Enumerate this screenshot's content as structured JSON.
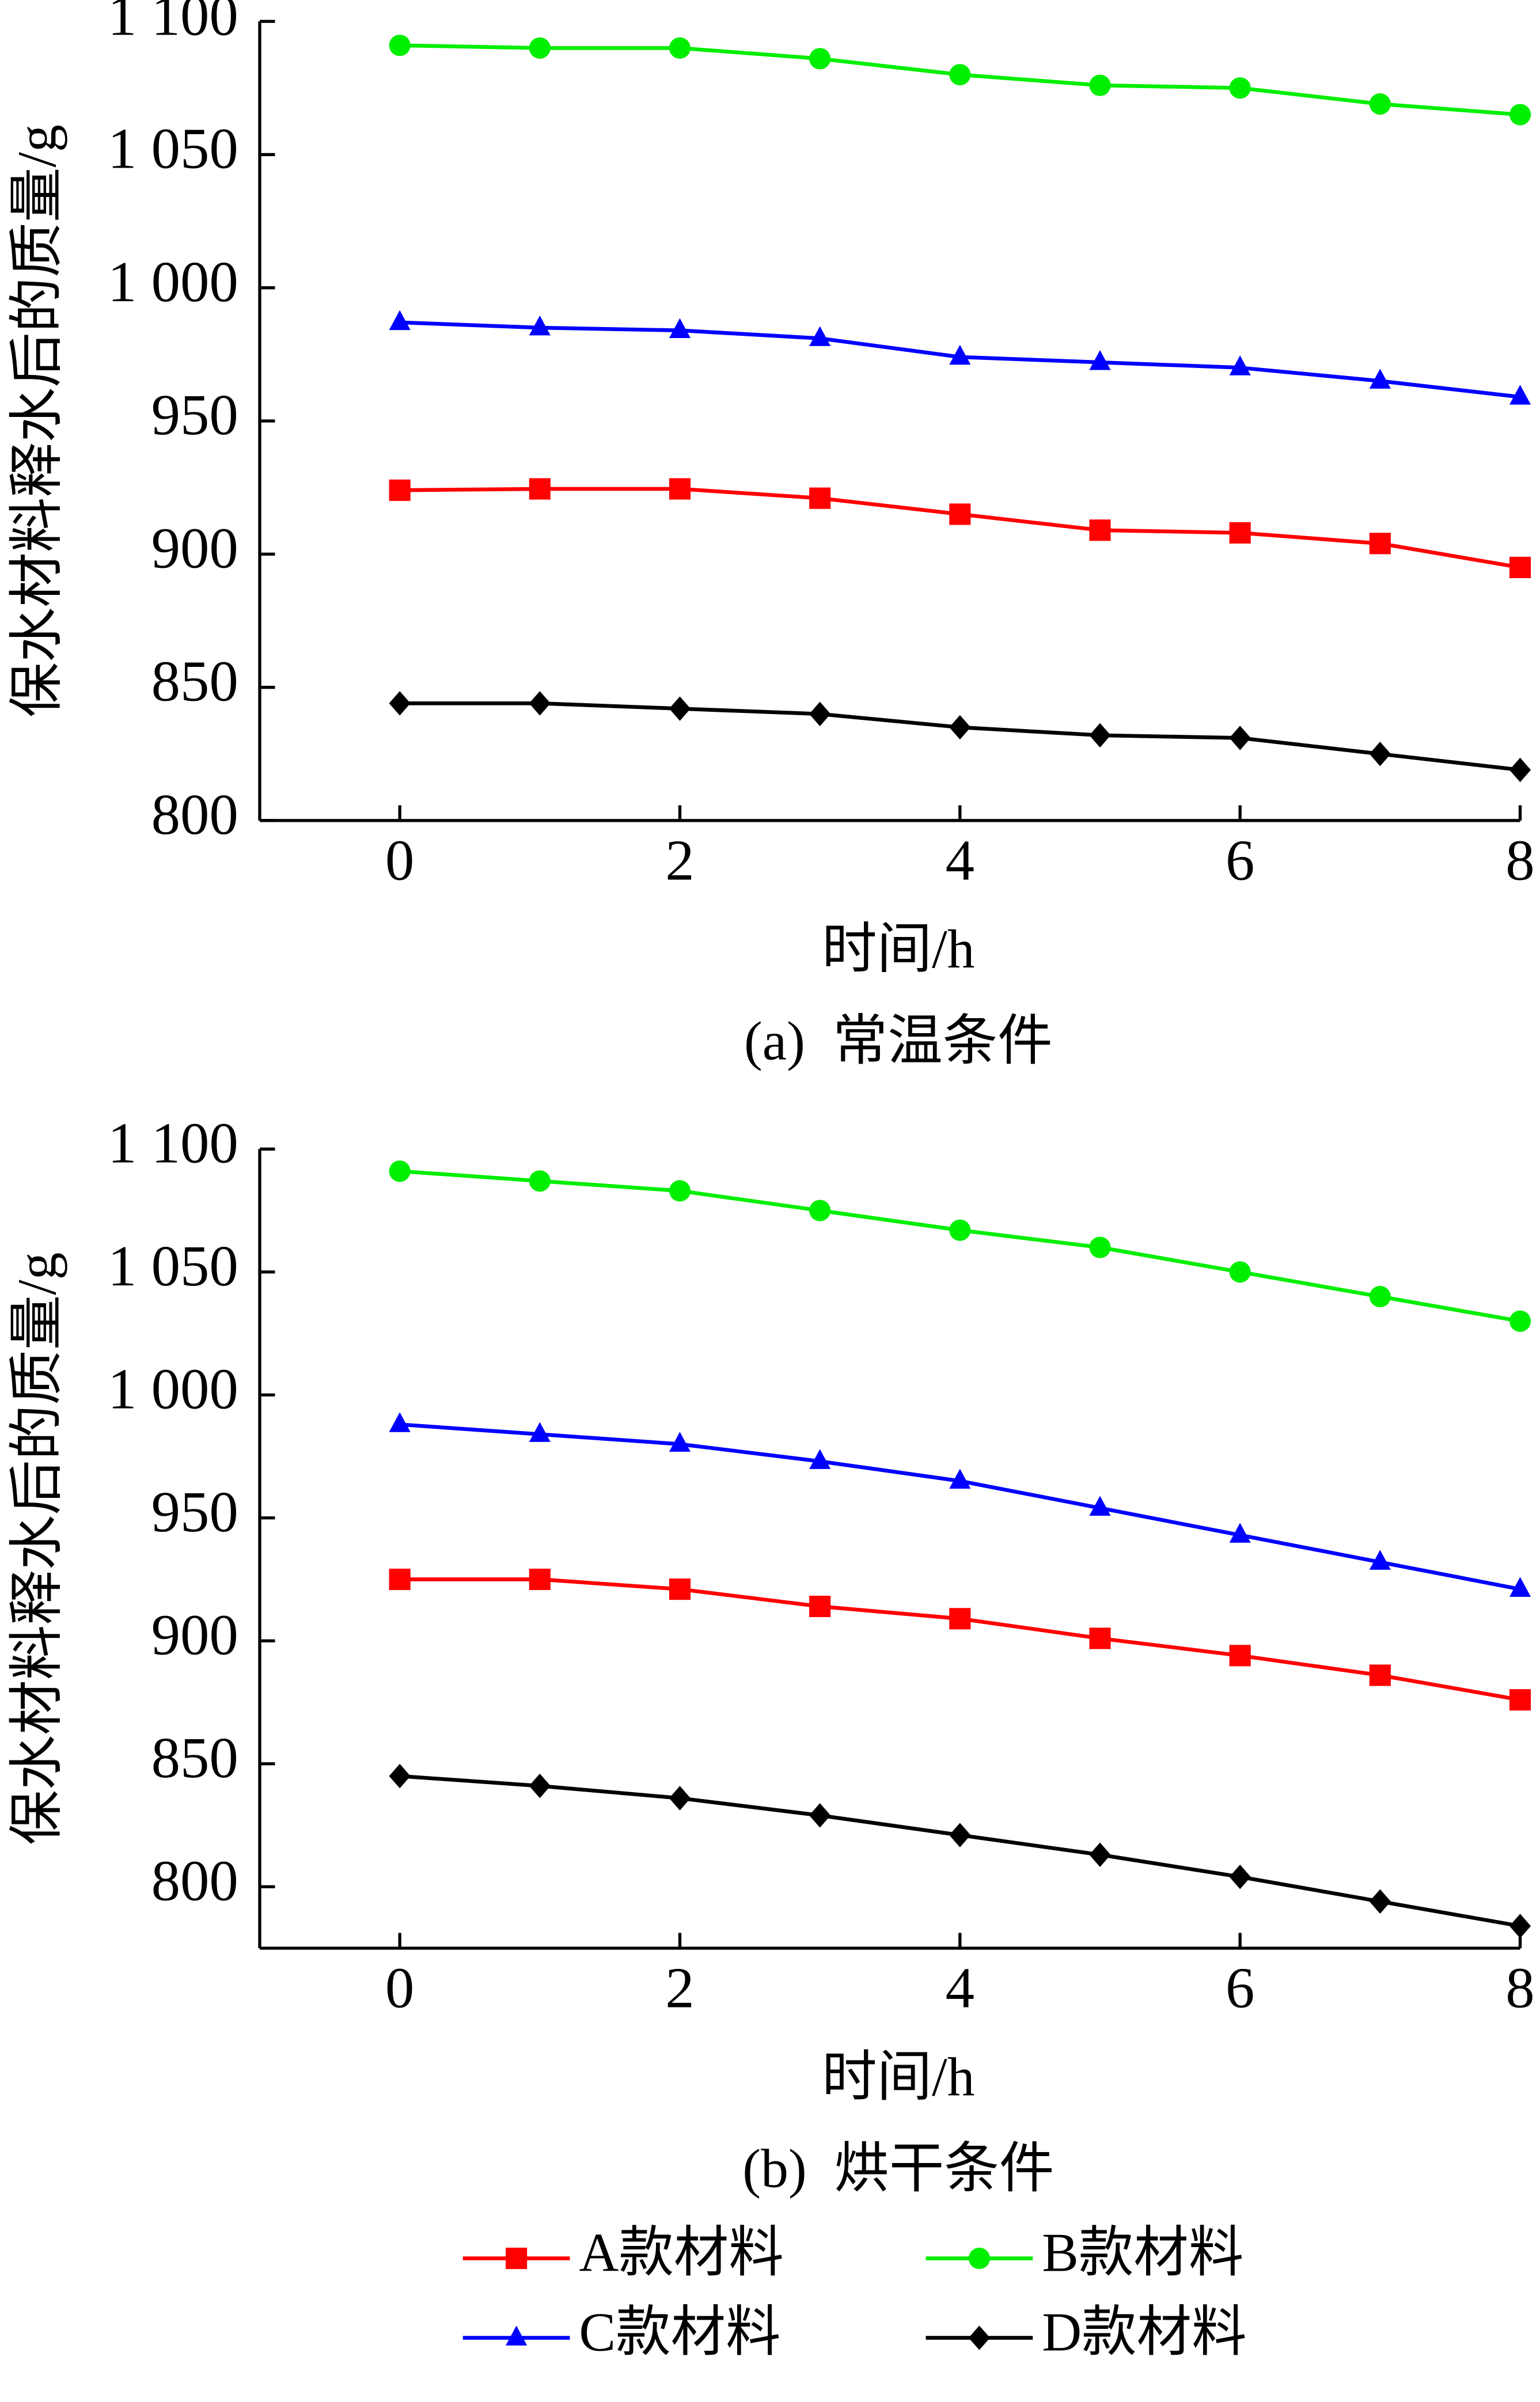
{
  "chart_data": [
    {
      "type": "line",
      "ylabel": "保水材料释水后的质量/g",
      "xlabel": "时间/h",
      "caption": "(a)  常温条件",
      "x": [
        0,
        1,
        2,
        3,
        4,
        5,
        6,
        7,
        8
      ],
      "xlim": [
        -1,
        8
      ],
      "xticks": [
        0,
        2,
        4,
        6,
        8
      ],
      "ylim": [
        800,
        1100
      ],
      "yticks": [
        800,
        850,
        900,
        950,
        {
          "value": 1000,
          "label": "1 000"
        },
        {
          "value": 1050,
          "label": "1 050"
        },
        {
          "value": 1100,
          "label": "1 100"
        }
      ],
      "series": [
        {
          "name": "A款材料",
          "color": "#ff0000",
          "marker": "square",
          "values": [
            924,
            924.5,
            924.5,
            921,
            915,
            909,
            908,
            904,
            895
          ]
        },
        {
          "name": "B款材料",
          "color": "#00ee00",
          "marker": "circle",
          "values": [
            1091,
            1090,
            1090,
            1086,
            1080,
            1076,
            1075,
            1069,
            1065
          ]
        },
        {
          "name": "C款材料",
          "color": "#0000ff",
          "marker": "triangle",
          "values": [
            987,
            985,
            984,
            981,
            974,
            972,
            970,
            965,
            959
          ]
        },
        {
          "name": "D款材料",
          "color": "#000000",
          "marker": "diamond",
          "values": [
            844,
            844,
            842,
            840,
            835,
            832,
            831,
            825,
            819
          ]
        }
      ]
    },
    {
      "type": "line",
      "ylabel": "保水材料释水后的质量/g",
      "xlabel": "时间/h",
      "caption": "(b)  烘干条件",
      "x": [
        0,
        1,
        2,
        3,
        4,
        5,
        6,
        7,
        8
      ],
      "xlim": [
        -1,
        8
      ],
      "xticks": [
        0,
        2,
        4,
        6,
        8
      ],
      "ylim": [
        775,
        1100
      ],
      "yticks": [
        800,
        850,
        900,
        950,
        {
          "value": 1000,
          "label": "1 000"
        },
        {
          "value": 1050,
          "label": "1 050"
        },
        {
          "value": 1100,
          "label": "1 100"
        }
      ],
      "series": [
        {
          "color": "#ff0000",
          "marker": "square",
          "values": [
            925,
            925,
            921,
            914,
            909,
            901,
            894,
            886,
            876
          ]
        },
        {
          "color": "#00ee00",
          "marker": "circle",
          "values": [
            1091,
            1087,
            1083,
            1075,
            1067,
            1060,
            1050,
            1040,
            1030
          ]
        },
        {
          "color": "#0000ff",
          "marker": "triangle",
          "values": [
            988,
            984,
            980,
            973,
            965,
            954,
            943,
            932,
            921
          ]
        },
        {
          "color": "#000000",
          "marker": "diamond",
          "values": [
            845,
            841,
            836,
            829,
            821,
            813,
            804,
            794,
            784
          ]
        }
      ]
    }
  ]
}
